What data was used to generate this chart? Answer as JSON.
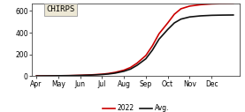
{
  "title": "CHIRPS",
  "line_2022": {
    "x": [
      3,
      3.5,
      4,
      4.5,
      5,
      5.5,
      6,
      6.3,
      6.6,
      7,
      7.3,
      7.6,
      8,
      8.3,
      8.6,
      9,
      9.3,
      9.6,
      10,
      10.5,
      11,
      11.5,
      12
    ],
    "y": [
      2,
      3,
      4,
      5,
      8,
      12,
      18,
      25,
      35,
      55,
      80,
      120,
      190,
      280,
      390,
      490,
      570,
      620,
      645,
      658,
      665,
      668,
      670
    ],
    "color": "#cc0000",
    "linewidth": 1.2,
    "label": "2022"
  },
  "line_avg": {
    "x": [
      3,
      3.5,
      4,
      4.5,
      5,
      5.5,
      6,
      6.3,
      6.6,
      7,
      7.3,
      7.6,
      8,
      8.3,
      8.6,
      9,
      9.3,
      9.6,
      10,
      10.5,
      11,
      11.5,
      12
    ],
    "y": [
      2,
      3,
      4,
      5,
      7,
      10,
      15,
      20,
      28,
      45,
      65,
      100,
      160,
      240,
      340,
      430,
      490,
      525,
      545,
      555,
      560,
      562,
      563
    ],
    "color": "#111111",
    "linewidth": 1.2,
    "label": "Avg."
  },
  "xlim": [
    2.8,
    12.3
  ],
  "ylim": [
    0,
    670
  ],
  "yticks": [
    0,
    200,
    400,
    600
  ],
  "xtick_labels": [
    "Apr",
    "May",
    "Jun",
    "Jul",
    "Aug",
    "Sep",
    "Oct",
    "Nov",
    "Dec"
  ],
  "xtick_positions": [
    3,
    4,
    5,
    6,
    7,
    8,
    9,
    10,
    11
  ],
  "background_color": "#ffffff",
  "box_facecolor": "#ede8d5",
  "box_edgecolor": "#999999"
}
